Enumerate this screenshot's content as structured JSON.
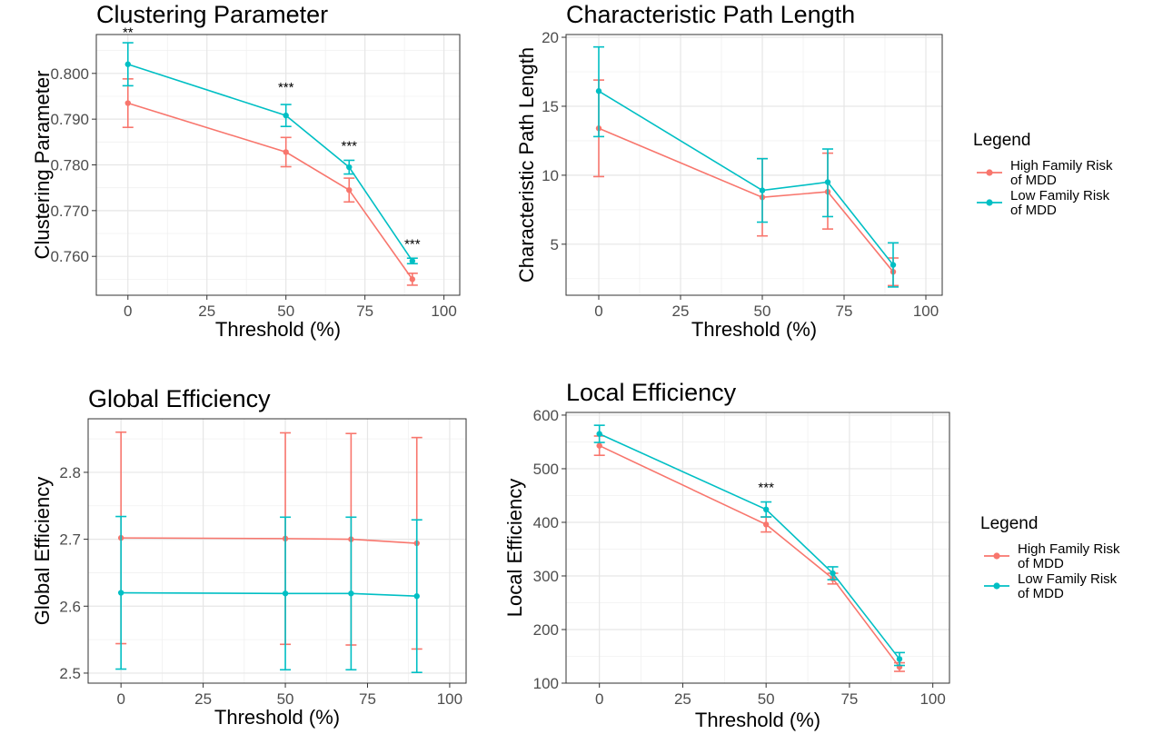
{
  "chart_data": [
    {
      "type": "line",
      "title": "Clustering Parameter",
      "xlabel": "Threshold (%)",
      "ylabel": "Clustering Parameter",
      "xlim": [
        -10,
        105
      ],
      "ylim": [
        0.7515,
        0.8085
      ],
      "xticks": [
        0,
        25,
        50,
        75,
        100
      ],
      "xtick_labels": [
        "0",
        "25",
        "50",
        "75",
        "100"
      ],
      "yticks": [
        0.76,
        0.77,
        0.78,
        0.79,
        0.8
      ],
      "ytick_labels": [
        "0.760",
        "0.770",
        "0.780",
        "0.790",
        "0.800"
      ],
      "grid": true,
      "legend": "none",
      "x": [
        0,
        50,
        70,
        90
      ],
      "series": [
        {
          "name": "High Family Risk of MDD",
          "color": "#F8766D",
          "values": [
            0.7935,
            0.7828,
            0.7745,
            0.755
          ],
          "err_low": [
            0.7882,
            0.7796,
            0.7719,
            0.7537
          ],
          "err_high": [
            0.7988,
            0.786,
            0.7771,
            0.7563
          ]
        },
        {
          "name": "Low Family Risk of MDD",
          "color": "#00BFC4",
          "values": [
            0.802,
            0.7908,
            0.7795,
            0.759
          ],
          "err_low": [
            0.7973,
            0.7884,
            0.778,
            0.7584
          ],
          "err_high": [
            0.8067,
            0.7932,
            0.781,
            0.7596
          ]
        }
      ],
      "annotations": [
        {
          "x": 0,
          "y": 0.808,
          "text": "**"
        },
        {
          "x": 50,
          "y": 0.796,
          "text": "***"
        },
        {
          "x": 70,
          "y": 0.7832,
          "text": "***"
        },
        {
          "x": 90,
          "y": 0.7617,
          "text": "***"
        }
      ]
    },
    {
      "type": "line",
      "title": "Characteristic Path Length",
      "xlabel": "Threshold (%)",
      "ylabel": "Characteristic Path Length",
      "xlim": [
        -10,
        105
      ],
      "ylim": [
        1.3,
        20.2
      ],
      "xticks": [
        0,
        25,
        50,
        75,
        100
      ],
      "xtick_labels": [
        "0",
        "25",
        "50",
        "75",
        "100"
      ],
      "yticks": [
        5,
        10,
        15,
        20
      ],
      "ytick_labels": [
        "5",
        "10",
        "15",
        "20"
      ],
      "grid": true,
      "legend": "right",
      "x": [
        0,
        50,
        70,
        90
      ],
      "series": [
        {
          "name": "High Family Risk of MDD",
          "color": "#F8766D",
          "values": [
            13.4,
            8.4,
            8.8,
            3.0
          ],
          "err_low": [
            9.9,
            5.6,
            6.1,
            2.0
          ],
          "err_high": [
            16.9,
            11.2,
            11.6,
            4.0
          ]
        },
        {
          "name": "Low Family Risk of MDD",
          "color": "#00BFC4",
          "values": [
            16.1,
            8.9,
            9.5,
            3.5
          ],
          "err_low": [
            12.8,
            6.6,
            7.0,
            1.9
          ],
          "err_high": [
            19.3,
            11.2,
            11.9,
            5.1
          ]
        }
      ],
      "annotations": []
    },
    {
      "type": "line",
      "title": "Global Efficiency",
      "xlabel": "Threshold (%)",
      "ylabel": "Global Efficiency",
      "xlim": [
        -10,
        105
      ],
      "ylim": [
        2.485,
        2.88
      ],
      "xticks": [
        0,
        25,
        50,
        75,
        100
      ],
      "xtick_labels": [
        "0",
        "25",
        "50",
        "75",
        "100"
      ],
      "yticks": [
        2.5,
        2.6,
        2.7,
        2.8
      ],
      "ytick_labels": [
        "2.5",
        "2.6",
        "2.7",
        "2.8"
      ],
      "grid": true,
      "legend": "none",
      "x": [
        0,
        50,
        70,
        90
      ],
      "series": [
        {
          "name": "High Family Risk of MDD",
          "color": "#F8766D",
          "values": [
            2.702,
            2.701,
            2.7,
            2.694
          ],
          "err_low": [
            2.544,
            2.543,
            2.542,
            2.536
          ],
          "err_high": [
            2.86,
            2.859,
            2.858,
            2.852
          ]
        },
        {
          "name": "Low Family Risk of MDD",
          "color": "#00BFC4",
          "values": [
            2.62,
            2.619,
            2.619,
            2.615
          ],
          "err_low": [
            2.506,
            2.505,
            2.505,
            2.501
          ],
          "err_high": [
            2.734,
            2.733,
            2.733,
            2.729
          ]
        }
      ],
      "annotations": []
    },
    {
      "type": "line",
      "title": "Local Efficiency",
      "xlabel": "Threshold (%)",
      "ylabel": "Local Efficiency",
      "xlim": [
        -10,
        105
      ],
      "ylim": [
        100,
        605
      ],
      "xticks": [
        0,
        25,
        50,
        75,
        100
      ],
      "xtick_labels": [
        "0",
        "25",
        "50",
        "75",
        "100"
      ],
      "yticks": [
        100,
        200,
        300,
        400,
        500,
        600
      ],
      "ytick_labels": [
        "100",
        "200",
        "300",
        "400",
        "500",
        "600"
      ],
      "grid": true,
      "legend": "right",
      "x": [
        0,
        50,
        70,
        90
      ],
      "series": [
        {
          "name": "High Family Risk of MDD",
          "color": "#F8766D",
          "values": [
            543,
            396,
            295,
            130
          ],
          "err_low": [
            525,
            382,
            285,
            122
          ],
          "err_high": [
            561,
            410,
            305,
            138
          ]
        },
        {
          "name": "Low Family Risk of MDD",
          "color": "#00BFC4",
          "values": [
            565,
            424,
            305,
            145
          ],
          "err_low": [
            549,
            410,
            293,
            133
          ],
          "err_high": [
            581,
            438,
            317,
            157
          ]
        }
      ],
      "annotations": [
        {
          "x": 50,
          "y": 457,
          "text": "***"
        }
      ]
    }
  ],
  "legends": [
    {
      "title": "Legend",
      "items": [
        {
          "line1": "High Family Risk",
          "line2": "of MDD",
          "color": "#F8766D"
        },
        {
          "line1": "Low Family Risk",
          "line2": "of MDD",
          "color": "#00BFC4"
        }
      ]
    },
    {
      "title": "Legend",
      "items": [
        {
          "line1": "High Family Risk",
          "line2": "of MDD",
          "color": "#F8766D"
        },
        {
          "line1": "Low Family Risk",
          "line2": "of MDD",
          "color": "#00BFC4"
        }
      ]
    }
  ]
}
